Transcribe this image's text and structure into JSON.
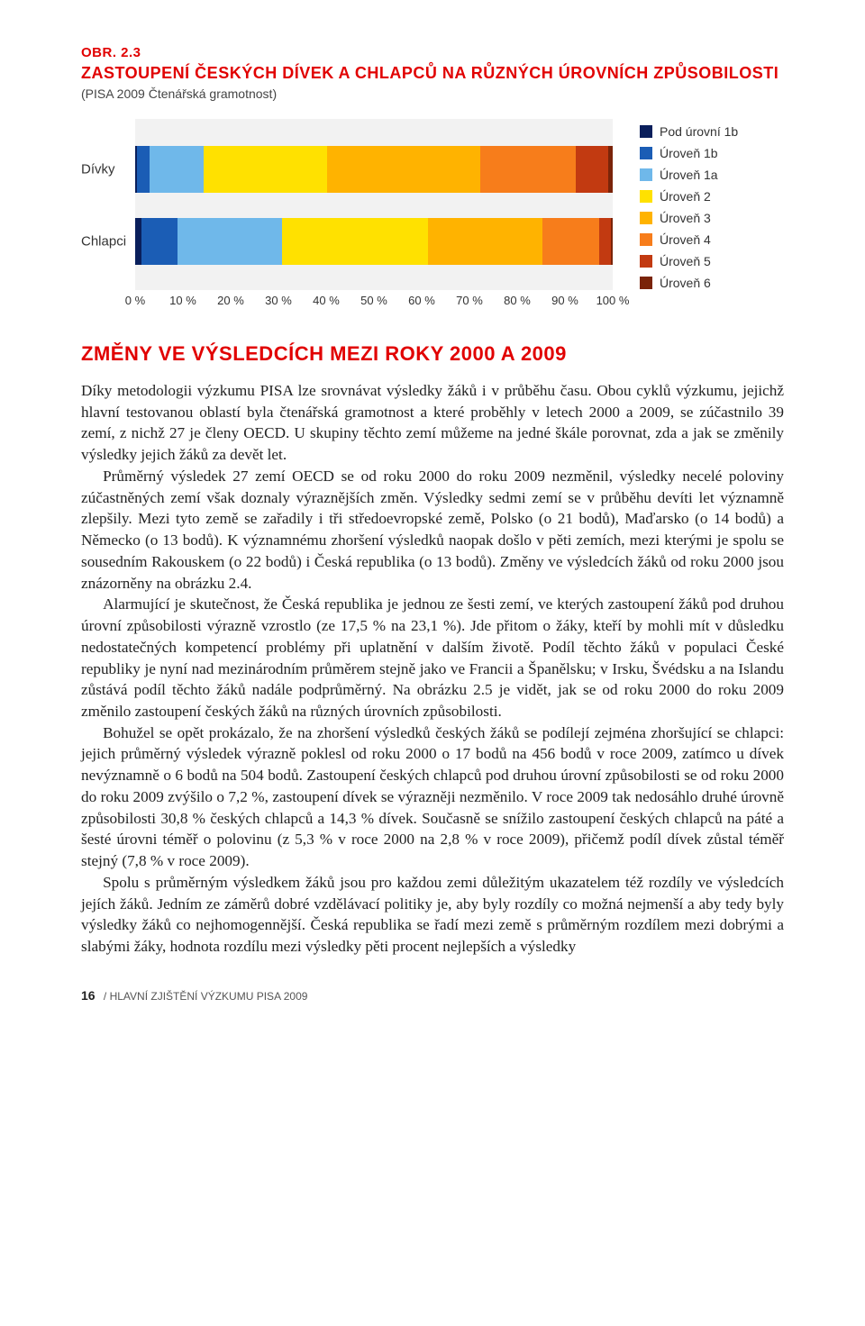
{
  "figure": {
    "label": "OBR. 2.3",
    "title": "ZASTOUPENÍ ČESKÝCH DÍVEK A CHLAPCŮ NA RŮZNÝCH ÚROVNÍCH ZPŮSOBILOSTI",
    "subtitle": "(PISA 2009 Čtenářská gramotnost)"
  },
  "chart": {
    "type": "stacked-bar-horizontal",
    "background_color": "#f2f2f2",
    "categories": [
      "Dívky",
      "Chlapci"
    ],
    "row_positions_pct": [
      16,
      58
    ],
    "series": [
      {
        "name": "Pod úrovní 1b",
        "color": "#0a1f5c"
      },
      {
        "name": "Úroveň 1b",
        "color": "#1b5db5"
      },
      {
        "name": "Úroveň 1a",
        "color": "#6fb8ea"
      },
      {
        "name": "Úroveň 2",
        "color": "#ffe100"
      },
      {
        "name": "Úroveň 3",
        "color": "#ffb300"
      },
      {
        "name": "Úroveň 4",
        "color": "#f77d1b"
      },
      {
        "name": "Úroveň 5",
        "color": "#c23a11"
      },
      {
        "name": "Úroveň 6",
        "color": "#7a2409"
      }
    ],
    "values": [
      [
        0.3,
        2.8,
        11.2,
        26.0,
        32.0,
        20.0,
        6.8,
        1.0
      ],
      [
        1.3,
        7.5,
        22.0,
        30.5,
        24.0,
        11.9,
        2.5,
        0.3
      ]
    ],
    "xticks": [
      "0 %",
      "10 %",
      "20 %",
      "30 %",
      "40 %",
      "50 %",
      "60 %",
      "70 %",
      "80 %",
      "90 %",
      "100 %"
    ],
    "xlim": [
      0,
      100
    ]
  },
  "section_title": "ZMĚNY VE VÝSLEDCÍCH MEZI ROKY 2000 A 2009",
  "paragraphs": [
    "Díky metodologii výzkumu PISA lze srovnávat výsledky žáků i v průběhu času. Obou cyklů výzkumu, jejichž hlavní testovanou oblastí byla čtenářská gramotnost a které proběhly v letech 2000 a 2009, se zúčastnilo 39 zemí, z nichž 27 je členy OECD. U skupiny těchto zemí můžeme na jedné škále porovnat, zda a jak se změnily výsledky jejich žáků za devět let.",
    "Průměrný výsledek 27 zemí OECD se od roku 2000 do roku 2009 nezměnil, výsledky necelé poloviny zúčastněných zemí však doznaly výraznějších změn. Výsledky sedmi zemí se v průběhu devíti let významně zlepšily. Mezi tyto země se zařadily i tři středoevropské země, Polsko (o 21 bodů), Maďarsko (o 14 bodů) a Německo (o 13 bodů). K významnému zhoršení výsledků naopak došlo v pěti zemích, mezi kterými je spolu se sousedním Rakouskem (o 22 bodů) i Česká republika (o 13 bodů). Změny ve výsledcích žáků od roku 2000 jsou znázorněny na obrázku 2.4.",
    "Alarmující je skutečnost, že Česká republika je jednou ze šesti zemí, ve kterých zastoupení žáků pod druhou úrovní způsobilosti výrazně vzrostlo (ze 17,5 % na 23,1 %). Jde přitom o žáky, kteří by mohli mít v důsledku nedostatečných kompetencí problémy při uplatnění v dalším životě. Podíl těchto žáků v populaci České republiky je nyní nad mezinárodním průměrem stejně jako ve Francii a Španělsku; v Irsku, Švédsku a na Islandu zůstává podíl těchto žáků nadále podprůměrný. Na obrázku 2.5 je vidět, jak se od roku 2000 do roku 2009 změnilo zastoupení českých žáků na různých úrovních způsobilosti.",
    "Bohužel se opět prokázalo, že na zhoršení výsledků českých žáků se podílejí zejména zhoršující se chlapci: jejich průměrný výsledek výrazně poklesl od roku 2000 o 17 bodů na 456 bodů v roce 2009, zatímco u dívek nevýznamně o 6 bodů na 504 bodů. Zastoupení českých chlapců pod druhou úrovní způsobilosti se od roku 2000 do roku 2009 zvýšilo o 7,2 %, zastoupení dívek se výrazněji nezměnilo. V roce 2009 tak nedosáhlo druhé úrovně způsobilosti 30,8 % českých chlapců a 14,3 % dívek. Současně se snížilo zastoupení českých chlapců na páté a šesté úrovni téměř o polovinu (z 5,3 % v roce 2000 na 2,8 % v roce 2009), přičemž podíl dívek zůstal téměř stejný (7,8 % v roce 2009).",
    "Spolu s průměrným výsledkem žáků jsou pro každou zemi důležitým ukazatelem též rozdíly ve výsledcích jejích žáků. Jedním ze záměrů dobré vzdělávací politiky je, aby byly rozdíly co možná nejmenší a aby tedy byly výsledky žáků co nejhomogennější. Česká republika se řadí mezi země s průměrným rozdílem mezi dobrými a slabými žáky, hodnota rozdílu mezi výsledky pěti procent nejlepších a výsledky"
  ],
  "footer": {
    "page": "16",
    "text": "/ HLAVNÍ ZJIŠTĚNÍ VÝZKUMU PISA 2009"
  }
}
